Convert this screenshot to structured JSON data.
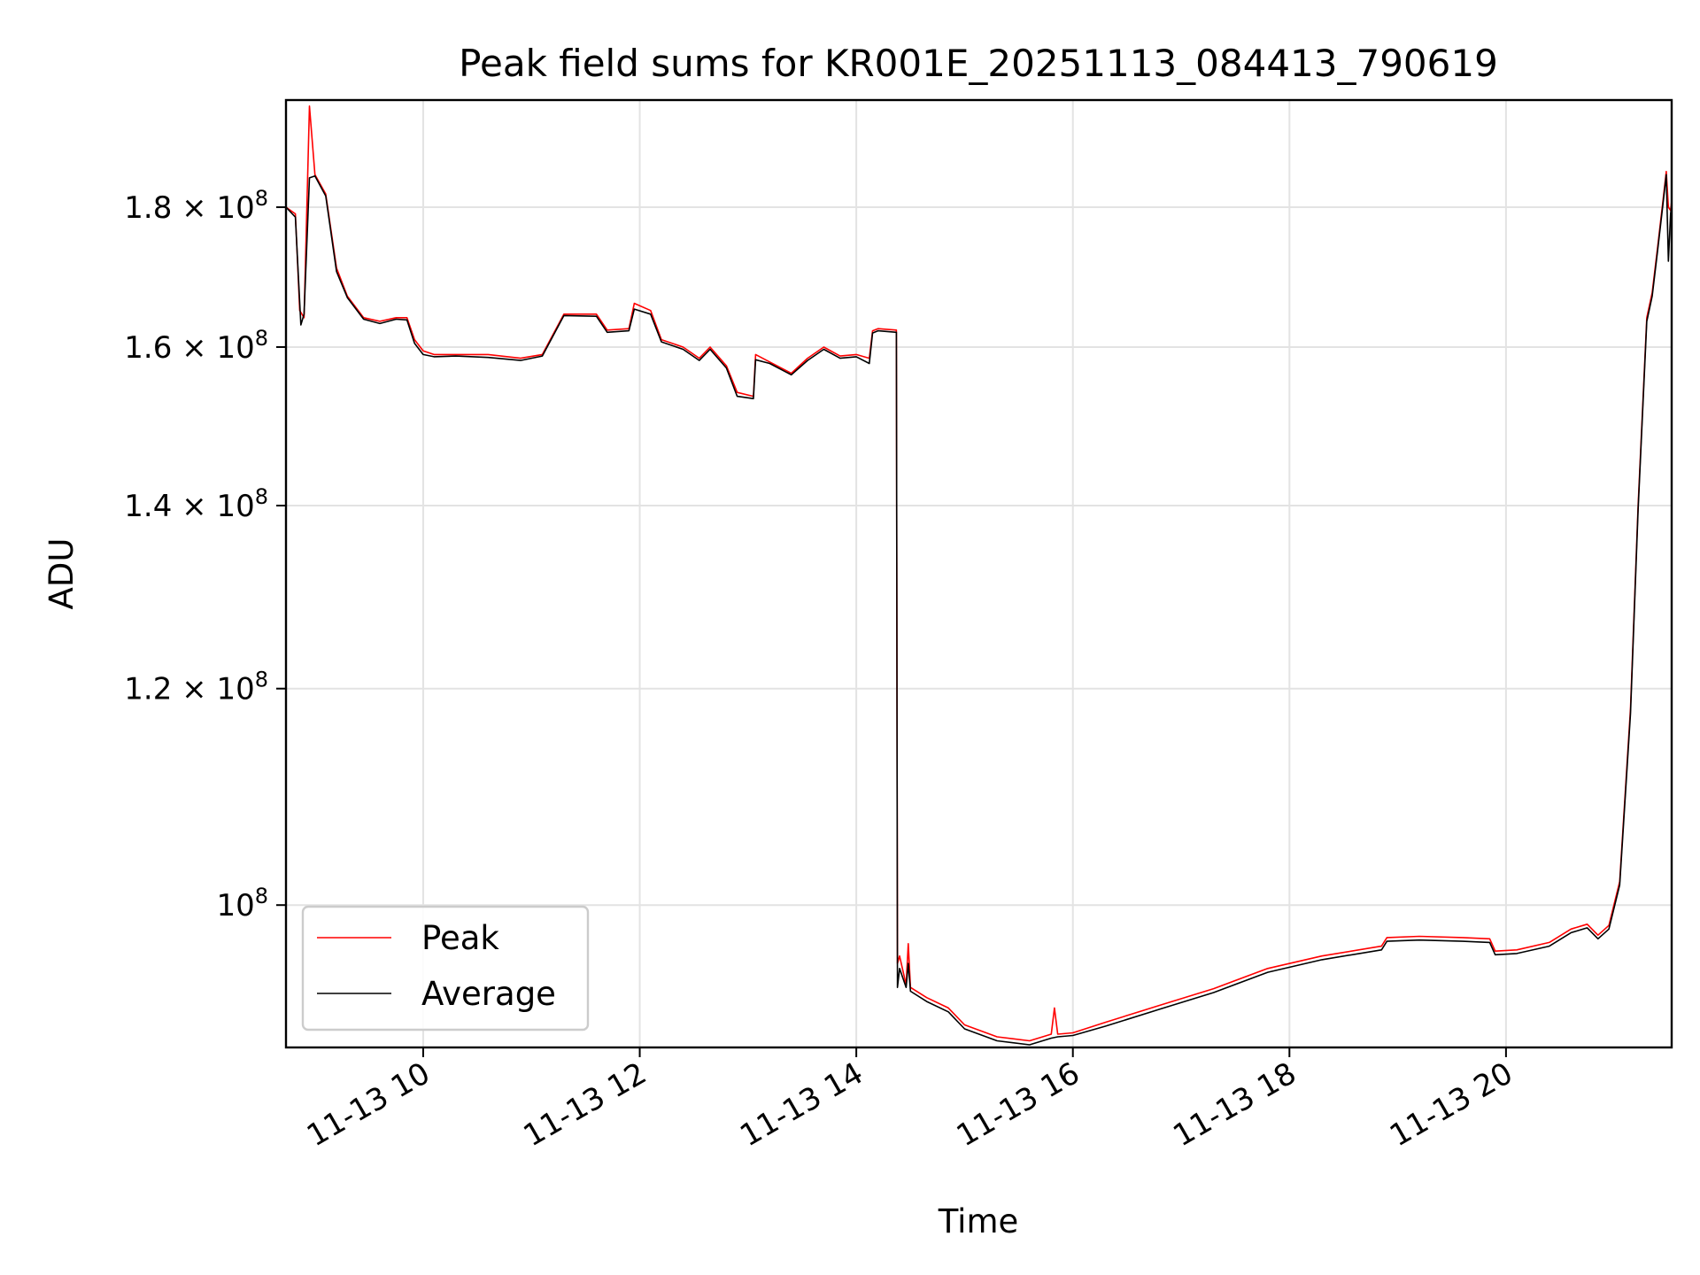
{
  "chart_data": {
    "type": "line",
    "title": "Peak field sums for KR001E_20251113_084413_790619",
    "xlabel": "Time",
    "ylabel": "ADU",
    "yscale": "log",
    "grid": true,
    "legend_location": "lower-left",
    "xlim": [
      8.733,
      21.53
    ],
    "ylim": [
      88700000,
      197000000
    ],
    "x_ticks": [
      {
        "value": 10,
        "label": "11-13 10"
      },
      {
        "value": 12,
        "label": "11-13 12"
      },
      {
        "value": 14,
        "label": "11-13 14"
      },
      {
        "value": 16,
        "label": "11-13 16"
      },
      {
        "value": 18,
        "label": "11-13 18"
      },
      {
        "value": 20,
        "label": "11-13 20"
      }
    ],
    "y_ticks": [
      {
        "value": 100000000,
        "mantissa": "",
        "exp": "8"
      },
      {
        "value": 120000000,
        "mantissa": "1.2",
        "exp": "8"
      },
      {
        "value": 140000000,
        "mantissa": "1.4",
        "exp": "8"
      },
      {
        "value": 160000000,
        "mantissa": "1.6",
        "exp": "8"
      },
      {
        "value": 180000000,
        "mantissa": "1.8",
        "exp": "8"
      }
    ],
    "tick_base": "10",
    "times_sign": "×",
    "series": [
      {
        "name": "Peak",
        "color": "#ff0000",
        "points": [
          [
            8.733,
            180000000
          ],
          [
            8.82,
            179000000
          ],
          [
            8.86,
            165000000
          ],
          [
            8.9,
            164000000
          ],
          [
            8.95,
            196000000
          ],
          [
            9.0,
            185000000
          ],
          [
            9.1,
            182000000
          ],
          [
            9.2,
            171000000
          ],
          [
            9.3,
            167000000
          ],
          [
            9.45,
            164000000
          ],
          [
            9.6,
            163500000
          ],
          [
            9.75,
            164000000
          ],
          [
            9.85,
            164000000
          ],
          [
            9.92,
            161000000
          ],
          [
            10.0,
            159500000
          ],
          [
            10.1,
            159000000
          ],
          [
            10.3,
            159000000
          ],
          [
            10.6,
            159000000
          ],
          [
            10.9,
            158500000
          ],
          [
            11.1,
            159000000
          ],
          [
            11.3,
            164500000
          ],
          [
            11.6,
            164500000
          ],
          [
            11.7,
            162300000
          ],
          [
            11.9,
            162500000
          ],
          [
            11.95,
            166000000
          ],
          [
            12.1,
            165000000
          ],
          [
            12.2,
            161000000
          ],
          [
            12.4,
            160000000
          ],
          [
            12.55,
            158500000
          ],
          [
            12.65,
            160000000
          ],
          [
            12.8,
            157500000
          ],
          [
            12.9,
            154000000
          ],
          [
            13.05,
            153500000
          ],
          [
            13.07,
            159000000
          ],
          [
            13.2,
            158000000
          ],
          [
            13.4,
            156500000
          ],
          [
            13.55,
            158500000
          ],
          [
            13.7,
            160000000
          ],
          [
            13.85,
            158800000
          ],
          [
            14.0,
            159000000
          ],
          [
            14.12,
            158500000
          ],
          [
            14.15,
            162200000
          ],
          [
            14.2,
            162500000
          ],
          [
            14.37,
            162300000
          ],
          [
            14.38,
            95200000
          ],
          [
            14.4,
            95800000
          ],
          [
            14.46,
            93500000
          ],
          [
            14.48,
            96800000
          ],
          [
            14.5,
            93300000
          ],
          [
            14.65,
            92500000
          ],
          [
            14.85,
            91700000
          ],
          [
            15.0,
            90400000
          ],
          [
            15.3,
            89500000
          ],
          [
            15.6,
            89200000
          ],
          [
            15.8,
            89700000
          ],
          [
            15.83,
            91700000
          ],
          [
            15.86,
            89700000
          ],
          [
            16.0,
            89800000
          ],
          [
            16.3,
            90600000
          ],
          [
            16.8,
            91900000
          ],
          [
            17.3,
            93200000
          ],
          [
            17.8,
            94800000
          ],
          [
            18.3,
            95800000
          ],
          [
            18.85,
            96600000
          ],
          [
            18.9,
            97300000
          ],
          [
            19.2,
            97400000
          ],
          [
            19.6,
            97300000
          ],
          [
            19.85,
            97200000
          ],
          [
            19.9,
            96200000
          ],
          [
            20.1,
            96300000
          ],
          [
            20.4,
            96900000
          ],
          [
            20.6,
            98000000
          ],
          [
            20.75,
            98400000
          ],
          [
            20.85,
            97500000
          ],
          [
            20.95,
            98300000
          ],
          [
            21.05,
            102000000
          ],
          [
            21.15,
            118000000
          ],
          [
            21.22,
            140000000
          ],
          [
            21.3,
            164000000
          ],
          [
            21.35,
            167500000
          ],
          [
            21.4,
            174000000
          ],
          [
            21.45,
            181000000
          ],
          [
            21.48,
            185500000
          ],
          [
            21.5,
            180000000
          ],
          [
            21.52,
            179500000
          ],
          [
            21.53,
            181000000
          ]
        ]
      },
      {
        "name": "Average",
        "color": "#000000",
        "points": [
          [
            8.733,
            180000000
          ],
          [
            8.82,
            178500000
          ],
          [
            8.87,
            163000000
          ],
          [
            8.9,
            164500000
          ],
          [
            8.95,
            184500000
          ],
          [
            9.0,
            184800000
          ],
          [
            9.1,
            181700000
          ],
          [
            9.2,
            170500000
          ],
          [
            9.3,
            166800000
          ],
          [
            9.45,
            163800000
          ],
          [
            9.6,
            163200000
          ],
          [
            9.75,
            163800000
          ],
          [
            9.85,
            163700000
          ],
          [
            9.92,
            160500000
          ],
          [
            10.0,
            159000000
          ],
          [
            10.1,
            158700000
          ],
          [
            10.3,
            158800000
          ],
          [
            10.6,
            158600000
          ],
          [
            10.9,
            158200000
          ],
          [
            11.1,
            158800000
          ],
          [
            11.3,
            164300000
          ],
          [
            11.6,
            164200000
          ],
          [
            11.7,
            162000000
          ],
          [
            11.9,
            162200000
          ],
          [
            11.95,
            165200000
          ],
          [
            12.1,
            164500000
          ],
          [
            12.2,
            160700000
          ],
          [
            12.4,
            159700000
          ],
          [
            12.55,
            158200000
          ],
          [
            12.65,
            159700000
          ],
          [
            12.8,
            157200000
          ],
          [
            12.9,
            153500000
          ],
          [
            13.05,
            153200000
          ],
          [
            13.07,
            158300000
          ],
          [
            13.2,
            157800000
          ],
          [
            13.4,
            156300000
          ],
          [
            13.55,
            158200000
          ],
          [
            13.7,
            159700000
          ],
          [
            13.85,
            158500000
          ],
          [
            14.0,
            158700000
          ],
          [
            14.12,
            157800000
          ],
          [
            14.15,
            161900000
          ],
          [
            14.2,
            162200000
          ],
          [
            14.37,
            162000000
          ],
          [
            14.38,
            93300000
          ],
          [
            14.4,
            94800000
          ],
          [
            14.46,
            93300000
          ],
          [
            14.48,
            95200000
          ],
          [
            14.5,
            93000000
          ],
          [
            14.65,
            92200000
          ],
          [
            14.85,
            91400000
          ],
          [
            15.0,
            90100000
          ],
          [
            15.3,
            89200000
          ],
          [
            15.6,
            88900000
          ],
          [
            15.8,
            89400000
          ],
          [
            15.86,
            89500000
          ],
          [
            16.0,
            89600000
          ],
          [
            16.3,
            90300000
          ],
          [
            16.8,
            91600000
          ],
          [
            17.3,
            92900000
          ],
          [
            17.8,
            94500000
          ],
          [
            18.3,
            95500000
          ],
          [
            18.85,
            96300000
          ],
          [
            18.9,
            97000000
          ],
          [
            19.2,
            97100000
          ],
          [
            19.6,
            97000000
          ],
          [
            19.85,
            96900000
          ],
          [
            19.9,
            95900000
          ],
          [
            20.1,
            96000000
          ],
          [
            20.4,
            96600000
          ],
          [
            20.6,
            97700000
          ],
          [
            20.75,
            98100000
          ],
          [
            20.85,
            97200000
          ],
          [
            20.95,
            98000000
          ],
          [
            21.05,
            101700000
          ],
          [
            21.15,
            117500000
          ],
          [
            21.22,
            139500000
          ],
          [
            21.3,
            163500000
          ],
          [
            21.35,
            167000000
          ],
          [
            21.4,
            173500000
          ],
          [
            21.45,
            180500000
          ],
          [
            21.48,
            185000000
          ],
          [
            21.5,
            172000000
          ],
          [
            21.52,
            179000000
          ],
          [
            21.53,
            180500000
          ]
        ]
      }
    ]
  }
}
